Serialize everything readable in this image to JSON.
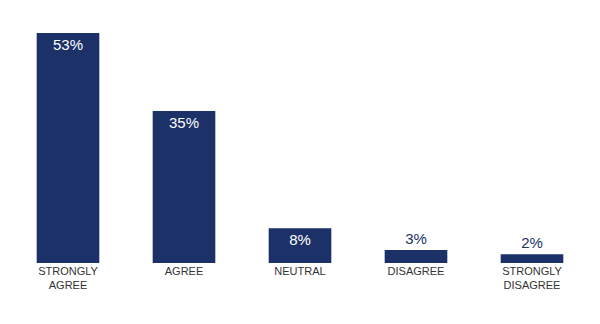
{
  "chart_data": {
    "type": "bar",
    "categories": [
      "STRONGLY AGREE",
      "AGREE",
      "NEUTRAL",
      "DISAGREE",
      "STRONGLY DISAGREE"
    ],
    "values": [
      53,
      35,
      8,
      3,
      2
    ],
    "value_labels": [
      "53%",
      "35%",
      "8%",
      "3%",
      "2%"
    ],
    "color": "#1b3168",
    "ylim": [
      0,
      53
    ],
    "grid": false,
    "data_labels": true,
    "tick_labels": "x"
  }
}
